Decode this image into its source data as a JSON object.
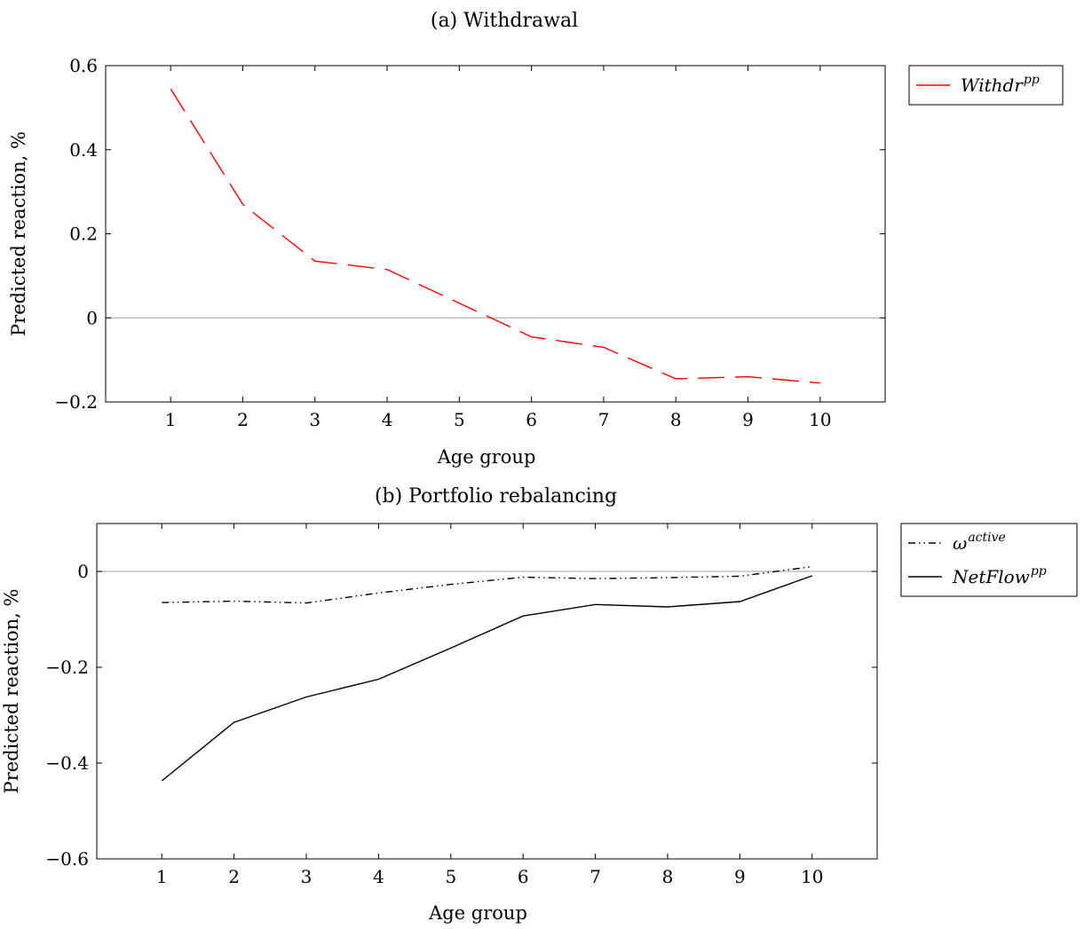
{
  "chart_data": [
    {
      "type": "line",
      "title": "(a) Withdrawal",
      "xlabel": "Age group",
      "ylabel": "Predicted reaction, %",
      "xlim": [
        0.1,
        10.9
      ],
      "ylim": [
        -0.2,
        0.6
      ],
      "x": [
        1,
        2,
        3,
        4,
        5,
        6,
        7,
        8,
        9,
        10
      ],
      "x_tick_labels": [
        "1",
        "2",
        "3",
        "4",
        "5",
        "6",
        "7",
        "8",
        "9",
        "10"
      ],
      "y_ticks": [
        -0.2,
        0,
        0.2,
        0.4,
        0.6
      ],
      "y_tick_labels": [
        "−0.2",
        "0",
        "0.2",
        "0.4",
        "0.6"
      ],
      "zero_line": true,
      "grid": false,
      "legend_position": "outside-top-right",
      "series": [
        {
          "name": "Withdr",
          "name_sup": "pp",
          "color": "#ff0000",
          "style": "dashed",
          "values": [
            0.545,
            0.27,
            0.135,
            0.115,
            0.035,
            -0.045,
            -0.07,
            -0.145,
            -0.14,
            -0.155
          ]
        }
      ]
    },
    {
      "type": "line",
      "title": "(b) Portfolio rebalancing",
      "xlabel": "Age group",
      "ylabel": "Predicted reaction, %",
      "xlim": [
        0.1,
        10.9
      ],
      "ylim": [
        -0.6,
        0.1
      ],
      "x": [
        1,
        2,
        3,
        4,
        5,
        6,
        7,
        8,
        9,
        10
      ],
      "x_tick_labels": [
        "1",
        "2",
        "3",
        "4",
        "5",
        "6",
        "7",
        "8",
        "9",
        "10"
      ],
      "y_ticks": [
        -0.6,
        -0.4,
        -0.2,
        0
      ],
      "y_tick_labels": [
        "−0.6",
        "−0.4",
        "−0.2",
        "0"
      ],
      "zero_line": true,
      "grid": false,
      "legend_position": "outside-top-right",
      "series": [
        {
          "name": "ω",
          "name_sup": "active",
          "color": "#000000",
          "style": "dash-dot-dot",
          "values": [
            -0.065,
            -0.062,
            -0.066,
            -0.045,
            -0.027,
            -0.012,
            -0.015,
            -0.013,
            -0.01,
            0.01
          ]
        },
        {
          "name": "NetFlow",
          "name_sup": "pp",
          "color": "#000000",
          "style": "solid",
          "values": [
            -0.437,
            -0.315,
            -0.262,
            -0.225,
            -0.16,
            -0.093,
            -0.069,
            -0.074,
            -0.063,
            -0.009
          ]
        }
      ]
    }
  ]
}
